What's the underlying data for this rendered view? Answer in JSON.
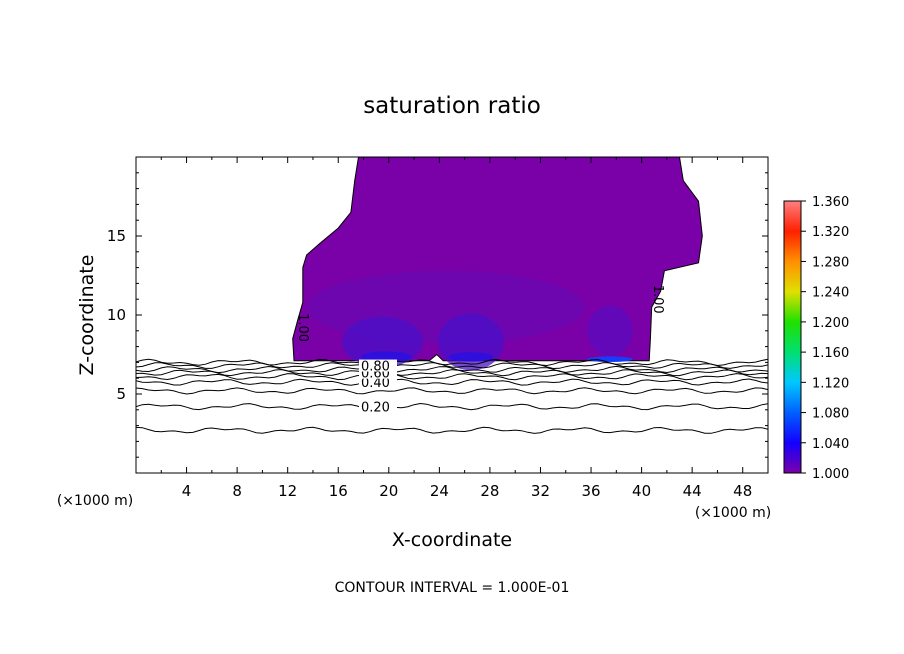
{
  "chart_data": {
    "type": "heatmap",
    "title": "saturation ratio",
    "xlabel": "X-coordinate",
    "ylabel": "Z-coordinate",
    "x_unit_label": "(×1000 m)",
    "y_unit_label": "(×1000 m)",
    "footer": "CONTOUR INTERVAL = 1.000E-01",
    "xlim": [
      0,
      50
    ],
    "ylim": [
      0,
      20
    ],
    "x_ticks": [
      "4",
      "8",
      "12",
      "16",
      "20",
      "24",
      "28",
      "32",
      "36",
      "40",
      "44",
      "48"
    ],
    "y_ticks": [
      "5",
      "10",
      "15"
    ],
    "colorbar": {
      "range": [
        1.0,
        1.36
      ],
      "ticks": [
        "1.000",
        "1.040",
        "1.080",
        "1.120",
        "1.160",
        "1.200",
        "1.240",
        "1.280",
        "1.320",
        "1.360"
      ],
      "colors": [
        "#7a00a8",
        "#1400ff",
        "#0060ff",
        "#00c8ff",
        "#00e070",
        "#20e000",
        "#e0e000",
        "#ff9000",
        "#ff2000",
        "#ff8080"
      ]
    },
    "supersaturated_region": {
      "level": 1.0,
      "label": "1.00",
      "outline": [
        [
          12.5,
          7.1
        ],
        [
          12.4,
          8.5
        ],
        [
          12.8,
          9.7
        ],
        [
          13.2,
          10.8
        ],
        [
          13.2,
          13.0
        ],
        [
          13.5,
          13.8
        ],
        [
          14.5,
          14.5
        ],
        [
          16.0,
          15.5
        ],
        [
          17.0,
          16.5
        ],
        [
          17.3,
          18.5
        ],
        [
          17.6,
          20.0
        ],
        [
          43.0,
          20.0
        ],
        [
          43.3,
          18.5
        ],
        [
          44.5,
          17.2
        ],
        [
          44.8,
          15.0
        ],
        [
          44.5,
          13.3
        ],
        [
          41.8,
          12.8
        ],
        [
          41.5,
          11.5
        ],
        [
          40.8,
          10.5
        ],
        [
          40.7,
          8.5
        ],
        [
          40.6,
          7.1
        ],
        [
          24.3,
          7.1
        ],
        [
          23.8,
          7.5
        ],
        [
          23.2,
          7.1
        ]
      ],
      "max_value_approx": 1.04,
      "max_locations_x": [
        19.5,
        26.5,
        37.5
      ]
    },
    "contour_lines": [
      {
        "level": 0.2,
        "label": "0.20",
        "z": 4.2
      },
      {
        "level": 0.3,
        "label": "",
        "z": 5.2
      },
      {
        "level": 0.4,
        "label": "0.40",
        "z": 5.75
      },
      {
        "level": 0.5,
        "label": "",
        "z": 6.1
      },
      {
        "level": 0.6,
        "label": "0.60",
        "z": 6.35
      },
      {
        "level": 0.7,
        "label": "",
        "z": 6.55
      },
      {
        "level": 0.8,
        "label": "0.80",
        "z": 6.8
      },
      {
        "level": 0.9,
        "label": "",
        "z": 7.0
      },
      {
        "level": 0.1,
        "label": "",
        "z": 2.7
      }
    ]
  }
}
